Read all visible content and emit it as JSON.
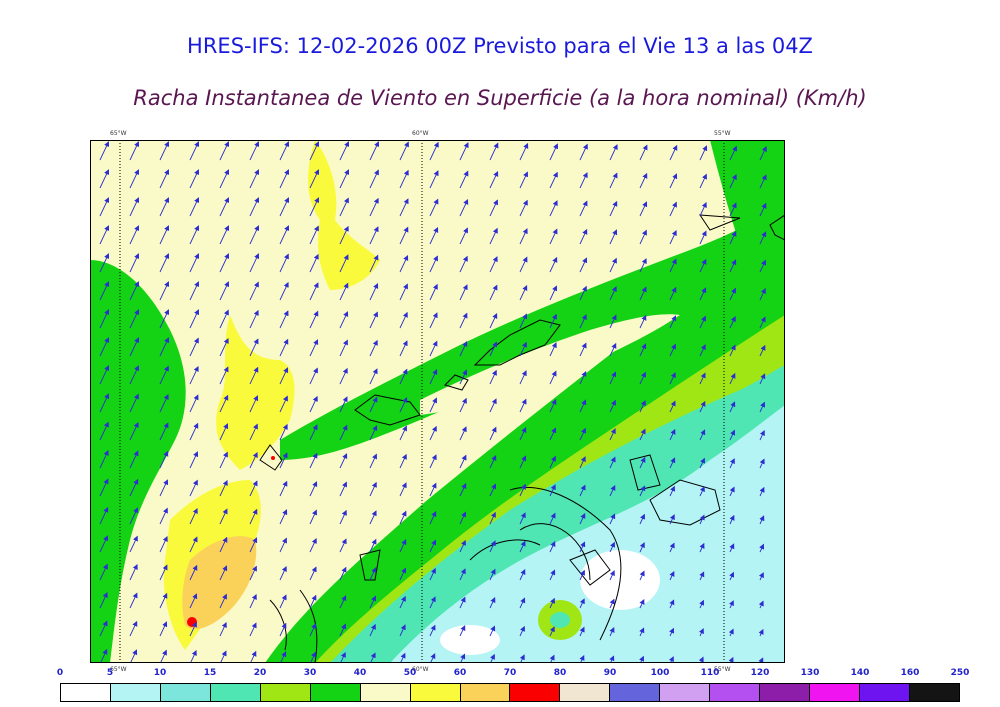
{
  "title": "HRES-IFS: 12-02-2026 00Z Previsto para el Vie 13 a las 04Z",
  "subtitle": "Racha Instantanea de Viento en Superficie (a la hora nominal) (Km/h)",
  "map": {
    "longitude_labels_top": [
      "65°W",
      "60°W",
      "55°W"
    ],
    "longitude_labels_bottom": [
      "65°W",
      "60°W",
      "55°W"
    ]
  },
  "legend": {
    "labels": [
      "0",
      "5",
      "10",
      "15",
      "20",
      "30",
      "40",
      "50",
      "60",
      "70",
      "80",
      "90",
      "100",
      "110",
      "120",
      "130",
      "140",
      "160",
      "250"
    ],
    "colors": [
      "#ffffff",
      "#b4f4f4",
      "#7ce6dc",
      "#50e6b4",
      "#a0e614",
      "#14d214",
      "#fafac8",
      "#fafa3c",
      "#fad25a",
      "#fa0000",
      "#f0e6d2",
      "#6464dc",
      "#d2a0f0",
      "#b450f0",
      "#8c1eaa",
      "#f014f0",
      "#6e14f0",
      "#141414"
    ]
  },
  "colors": {
    "title": "#1a1adc",
    "subtitle": "#5a1650",
    "arrows": "#2d2dd2"
  }
}
